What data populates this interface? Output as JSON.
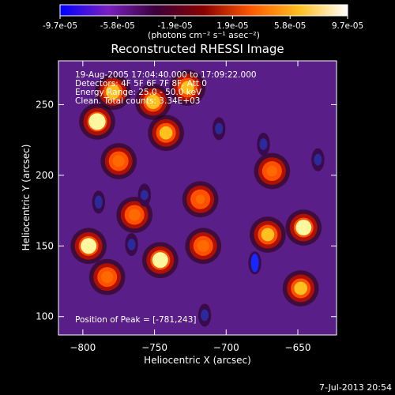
{
  "colorbar": {
    "tick_labels": [
      "-9.7e-05",
      "-5.8e-05",
      "-1.9e-05",
      "1.9e-05",
      "5.8e-05",
      "9.7e-05"
    ],
    "unit_label": "(photons cm⁻² s⁻¹ asec⁻²)",
    "colors": [
      "#0000ff",
      "#7a20c0",
      "#3a003a",
      "#8a0000",
      "#ff5a00",
      "#ffc020",
      "#ffffff"
    ]
  },
  "chart_data": {
    "type": "heatmap",
    "title": "Reconstructed RHESSI Image",
    "xlabel": "Heliocentric X (arcsec)",
    "ylabel": "Heliocentric Y (arcsec)",
    "xlim": [
      -817,
      -623
    ],
    "ylim": [
      87,
      281
    ],
    "x_ticks": [
      -800,
      -750,
      -700,
      -650
    ],
    "y_ticks": [
      100,
      150,
      200,
      250
    ],
    "value_range": [
      -9.7e-05,
      9.7e-05
    ],
    "annotations": [
      "19-Aug-2005 17:04:40.000 to 17:09:22.000",
      "Detectors: 4F 5F 6F 7F 8F, Att 0",
      "Energy Range: 25.0 - 50.0 keV",
      "Clean. Total counts: 3.34E+03"
    ],
    "peak_label": "Position of Peak = [-781,243]",
    "peak": [
      -781,
      243
    ],
    "bright_sources": [
      {
        "x": -790,
        "y": 238,
        "value": 9.7e-05
      },
      {
        "x": -779,
        "y": 259,
        "value": 8e-05
      },
      {
        "x": -751,
        "y": 252,
        "value": 8e-05
      },
      {
        "x": -727,
        "y": 262,
        "value": 7e-05
      },
      {
        "x": -742,
        "y": 230,
        "value": 7e-05
      },
      {
        "x": -775,
        "y": 210,
        "value": 6e-05
      },
      {
        "x": -746,
        "y": 140,
        "value": 9e-05
      },
      {
        "x": -764,
        "y": 172,
        "value": 6e-05
      },
      {
        "x": -796,
        "y": 150,
        "value": 9e-05
      },
      {
        "x": -783,
        "y": 128,
        "value": 6e-05
      },
      {
        "x": -671,
        "y": 158,
        "value": 7e-05
      },
      {
        "x": -646,
        "y": 163,
        "value": 9e-05
      },
      {
        "x": -648,
        "y": 120,
        "value": 7e-05
      },
      {
        "x": -716,
        "y": 150,
        "value": 6e-05
      },
      {
        "x": -668,
        "y": 203,
        "value": 5e-05
      },
      {
        "x": -718,
        "y": 183,
        "value": 4e-05
      }
    ],
    "dark_sources": [
      {
        "x": -680,
        "y": 138,
        "value": -9.7e-05
      },
      {
        "x": -789,
        "y": 181,
        "value": -6e-05
      },
      {
        "x": -705,
        "y": 233,
        "value": -5e-05
      },
      {
        "x": -636,
        "y": 211,
        "value": -5e-05
      },
      {
        "x": -674,
        "y": 222,
        "value": -5e-05
      },
      {
        "x": -757,
        "y": 186,
        "value": -4e-05
      },
      {
        "x": -766,
        "y": 151,
        "value": -5e-05
      },
      {
        "x": -715,
        "y": 101,
        "value": -5e-05
      }
    ]
  },
  "footer": {
    "timestamp": "7-Jul-2013 20:54"
  }
}
